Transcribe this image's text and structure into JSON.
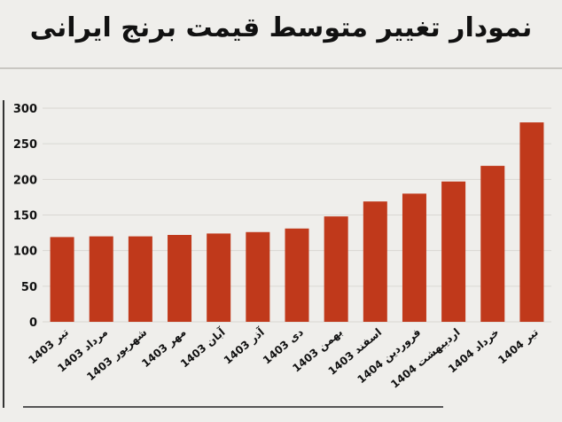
{
  "chart_data": {
    "type": "bar",
    "title": "نمودار تغییر متوسط قیمت برنج ایرانی",
    "categories": [
      "تیر 1403",
      "مرداد 1403",
      "شهریور 1403",
      "مهر 1403",
      "آبان 1403",
      "آذر 1403",
      "دی 1403",
      "بهمن 1403",
      "اسفند 1403",
      "فروردین 1404",
      "اردیبهشت 1404",
      "خرداد 1404",
      "تیر 1404"
    ],
    "values": [
      119,
      120,
      120,
      122,
      124,
      126,
      131,
      148,
      169,
      180,
      197,
      219,
      280
    ],
    "ylim": [
      0,
      300
    ],
    "yticks": [
      0,
      50,
      100,
      150,
      200,
      250,
      300
    ],
    "grid": true,
    "bar_color": "#c0391b",
    "xlabel": "",
    "ylabel": ""
  }
}
